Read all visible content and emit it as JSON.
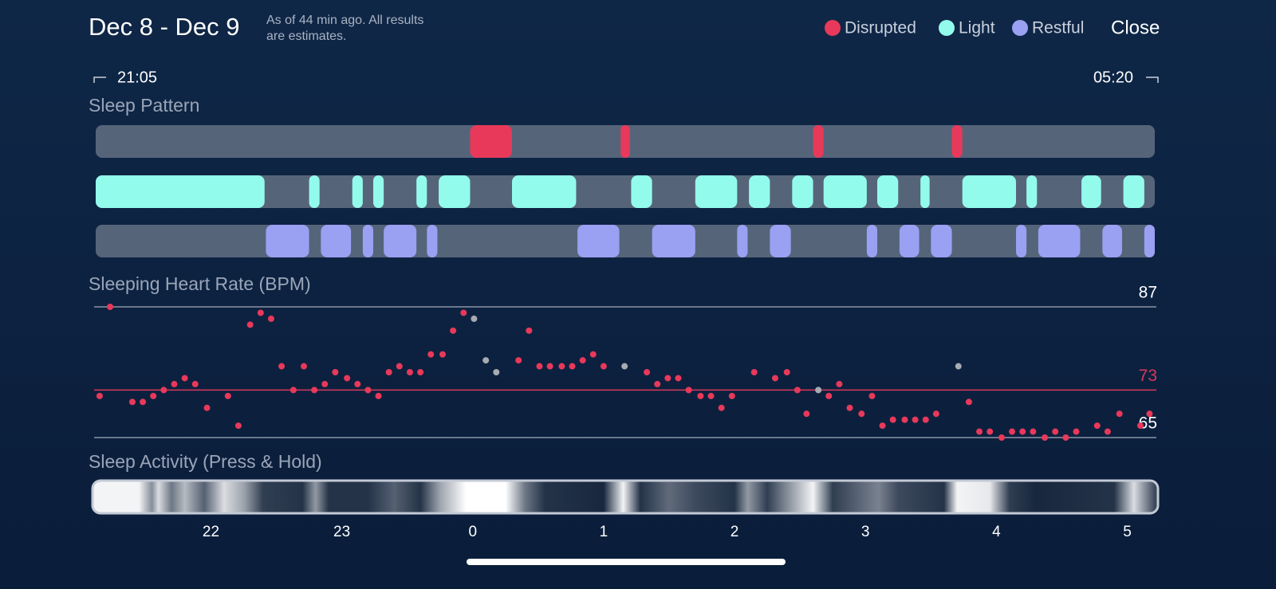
{
  "header": {
    "title": "Dec 8 - Dec 9",
    "subtitle": [
      "As of 44 min ago. All results",
      "are estimates."
    ],
    "close": "Close"
  },
  "chart_data": [
    {
      "type": "timeline",
      "title": "Sleep Pattern",
      "start_label": "21:05",
      "end_label": "05:20",
      "xlim": [
        -2.88,
        5.21
      ],
      "series": [
        {
          "name": "Disrupted",
          "color": "#e8395a",
          "segments": [
            [
              -0.02,
              0.3
            ],
            [
              1.13,
              1.2
            ],
            [
              2.6,
              2.68
            ],
            [
              3.66,
              3.74
            ]
          ]
        },
        {
          "name": "Light",
          "color": "#93fbec",
          "segments": [
            [
              -2.88,
              -1.59
            ],
            [
              -1.25,
              -1.17
            ],
            [
              -0.92,
              -0.84
            ],
            [
              -0.76,
              -0.68
            ],
            [
              -0.43,
              -0.35
            ],
            [
              -0.26,
              -0.02
            ],
            [
              0.3,
              0.79
            ],
            [
              1.21,
              1.37
            ],
            [
              1.7,
              2.02
            ],
            [
              2.11,
              2.27
            ],
            [
              2.44,
              2.6
            ],
            [
              2.68,
              3.01
            ],
            [
              3.09,
              3.25
            ],
            [
              3.42,
              3.49
            ],
            [
              3.74,
              4.15
            ],
            [
              4.23,
              4.31
            ],
            [
              4.65,
              4.8
            ],
            [
              4.97,
              5.13
            ]
          ]
        },
        {
          "name": "Restful",
          "color": "#9aa0f2",
          "segments": [
            [
              -1.58,
              -1.25
            ],
            [
              -1.16,
              -0.93
            ],
            [
              -0.84,
              -0.76
            ],
            [
              -0.68,
              -0.43
            ],
            [
              -0.35,
              -0.27
            ],
            [
              0.8,
              1.12
            ],
            [
              1.37,
              1.7
            ],
            [
              2.02,
              2.1
            ],
            [
              2.27,
              2.43
            ],
            [
              3.01,
              3.09
            ],
            [
              3.26,
              3.41
            ],
            [
              3.5,
              3.66
            ],
            [
              4.15,
              4.23
            ],
            [
              4.32,
              4.64
            ],
            [
              4.81,
              4.96
            ],
            [
              5.13,
              5.21
            ]
          ]
        }
      ]
    },
    {
      "type": "scatter",
      "title": "Sleeping Heart Rate (BPM)",
      "xlim": [
        -2.88,
        5.21
      ],
      "ylim": [
        65,
        87
      ],
      "yticks": [
        65,
        87
      ],
      "average": 73,
      "average_color": "#d8375a",
      "series": [
        {
          "color": "#e8395a",
          "x": [
            -2.85,
            -2.77,
            -2.6,
            -2.52,
            -2.44,
            -2.36,
            -2.28,
            -2.2,
            -2.12,
            -2.03,
            -1.87,
            -1.79,
            -1.7,
            -1.62,
            -1.54,
            -1.46,
            -1.37,
            -1.29,
            -1.21,
            -1.13,
            -1.05,
            -0.96,
            -0.88,
            -0.8,
            -0.72,
            -0.64,
            -0.56,
            -0.48,
            -0.4,
            -0.32,
            -0.23,
            -0.15,
            -0.07,
            0.35,
            0.43,
            0.51,
            0.59,
            0.68,
            0.76,
            0.84,
            0.92,
            1.0,
            1.33,
            1.41,
            1.49,
            1.57,
            1.65,
            1.74,
            1.82,
            1.9,
            1.98,
            2.15,
            2.31,
            2.4,
            2.48,
            2.55,
            2.72,
            2.8,
            2.88,
            2.97,
            3.05,
            3.13,
            3.21,
            3.3,
            3.38,
            3.46,
            3.54,
            3.79,
            3.87,
            3.95,
            4.04,
            4.12,
            4.2,
            4.28,
            4.37,
            4.45,
            4.53,
            4.61,
            4.77,
            4.85,
            4.94,
            5.1,
            5.17
          ],
          "values": [
            72,
            87,
            71,
            71,
            72,
            73,
            74,
            75,
            74,
            70,
            72,
            67,
            84,
            86,
            85,
            77,
            73,
            77,
            73,
            74,
            76,
            75,
            74,
            73,
            72,
            76,
            77,
            76,
            76,
            79,
            79,
            83,
            86,
            78,
            83,
            77,
            77,
            77,
            77,
            78,
            79,
            77,
            76,
            74,
            75,
            75,
            73,
            72,
            72,
            70,
            72,
            76,
            75,
            76,
            73,
            69,
            72,
            74,
            70,
            69,
            72,
            67,
            68,
            68,
            68,
            68,
            69,
            71,
            66,
            66,
            65,
            66,
            66,
            66,
            65,
            66,
            65,
            66,
            67,
            66,
            69,
            67,
            69
          ]
        },
        {
          "color": "#a7abb2",
          "x": [
            0.01,
            0.1,
            0.18,
            1.16,
            2.64,
            3.71
          ],
          "values": [
            85,
            78,
            76,
            77,
            73,
            77
          ]
        }
      ]
    },
    {
      "type": "heatstrip",
      "title": "Sleep Activity (Press & Hold)",
      "xlim": [
        -2.88,
        5.21
      ],
      "xticks": [
        {
          "value": -2,
          "label": "22"
        },
        {
          "value": -1,
          "label": "23"
        },
        0,
        1,
        2,
        3,
        4,
        5
      ],
      "x": [
        -2.88,
        -2.55,
        -2.45,
        -2.4,
        -2.3,
        -2.2,
        -2.05,
        -1.9,
        -1.75,
        -1.6,
        -1.3,
        -1.2,
        -1.1,
        -0.8,
        -0.6,
        -0.4,
        -0.25,
        -0.05,
        0.25,
        0.4,
        0.55,
        1.0,
        1.15,
        1.28,
        1.5,
        1.7,
        2.0,
        2.1,
        2.25,
        2.6,
        2.75,
        3.1,
        3.25,
        3.6,
        3.7,
        3.95,
        4.1,
        4.3,
        4.9,
        5.05,
        5.21
      ],
      "values": [
        95,
        95,
        50,
        85,
        40,
        70,
        30,
        85,
        60,
        15,
        10,
        55,
        10,
        10,
        30,
        10,
        60,
        100,
        100,
        40,
        10,
        5,
        95,
        10,
        35,
        20,
        10,
        55,
        15,
        95,
        15,
        45,
        20,
        10,
        95,
        90,
        15,
        5,
        10,
        85,
        20
      ]
    }
  ]
}
